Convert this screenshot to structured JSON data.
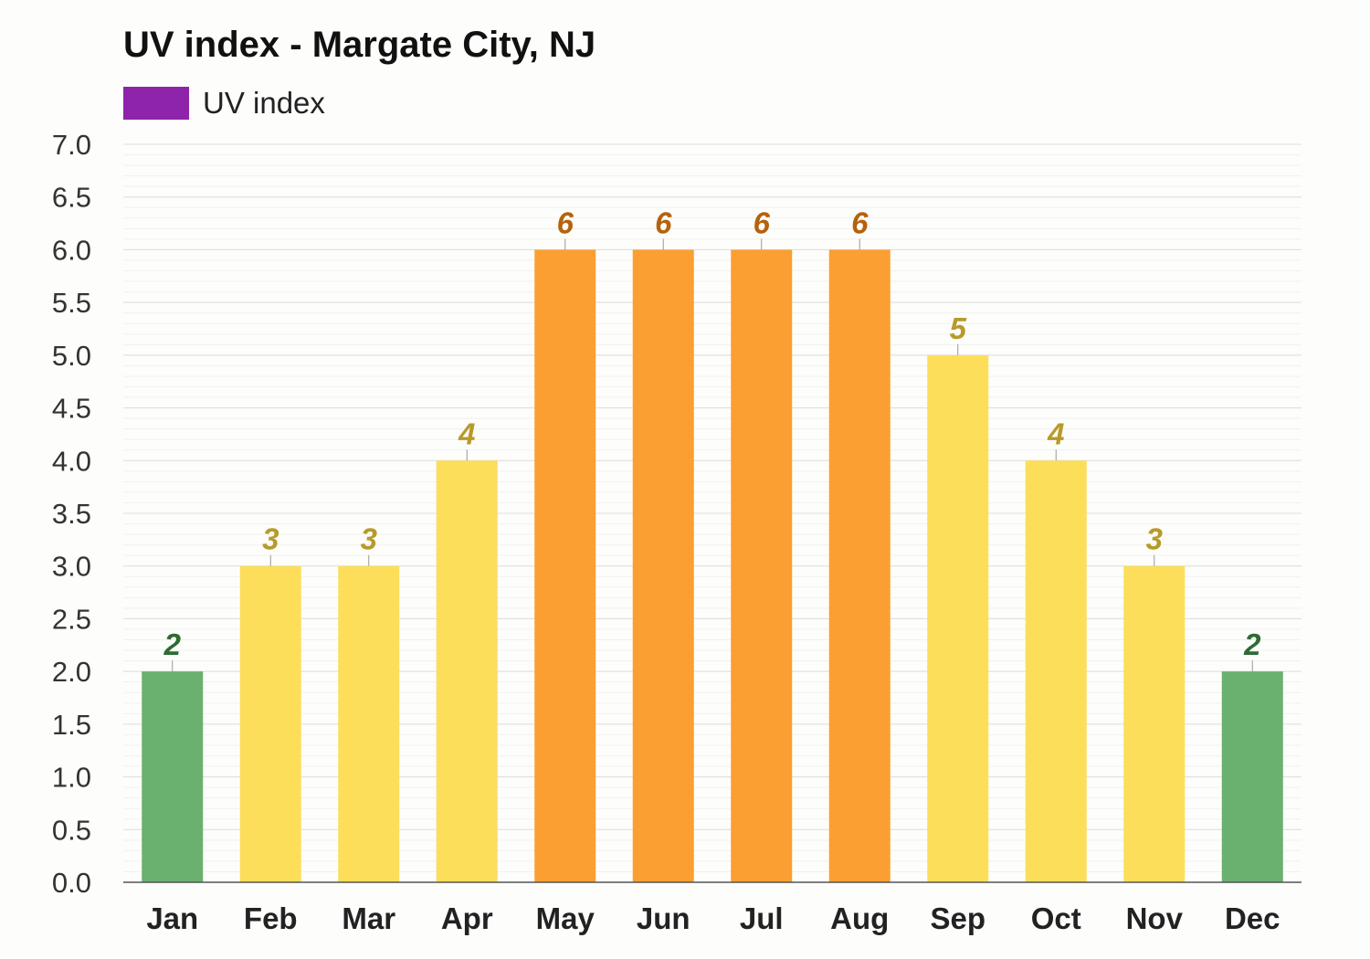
{
  "chart_data": {
    "type": "bar",
    "title": "UV index - Margate City, NJ",
    "legend": {
      "label": "UV index",
      "color": "#8e24aa",
      "placement": "top-left"
    },
    "categories": [
      "Jan",
      "Feb",
      "Mar",
      "Apr",
      "May",
      "Jun",
      "Jul",
      "Aug",
      "Sep",
      "Oct",
      "Nov",
      "Dec"
    ],
    "series": [
      {
        "name": "UV index",
        "values": [
          2,
          3,
          3,
          4,
          6,
          6,
          6,
          6,
          5,
          4,
          3,
          2
        ]
      }
    ],
    "data_labels": [
      "2",
      "3",
      "3",
      "4",
      "6",
      "6",
      "6",
      "6",
      "5",
      "4",
      "3",
      "2"
    ],
    "ylim": [
      0,
      7
    ],
    "y_ticks": [
      "0.0",
      "0.5",
      "1.0",
      "1.5",
      "2.0",
      "2.5",
      "3.0",
      "3.5",
      "4.0",
      "4.5",
      "5.0",
      "5.5",
      "6.0",
      "6.5",
      "7.0"
    ],
    "xlabel": "",
    "ylabel": "",
    "grid": true,
    "colors": {
      "low": {
        "bar": "#6ab06e",
        "label": "#2e6b34"
      },
      "moderate": {
        "bar": "#fcde5a",
        "label": "#b89a2a"
      },
      "high": {
        "bar": "#fb9f32",
        "label": "#b5620c"
      }
    }
  }
}
